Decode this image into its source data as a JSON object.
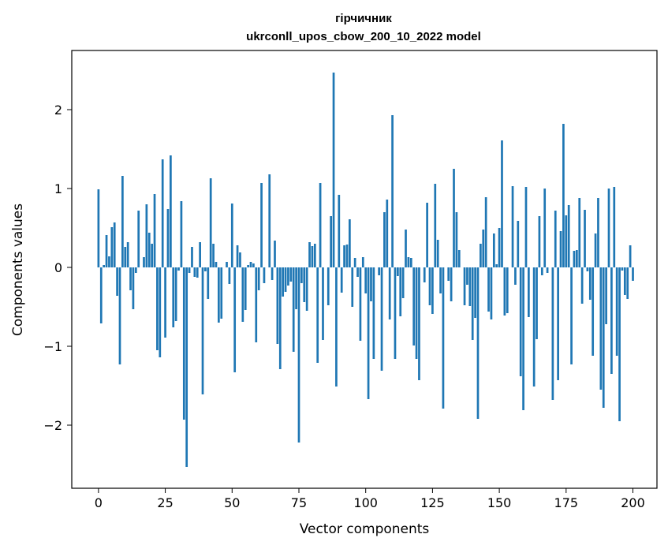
{
  "chart_data": {
    "type": "bar",
    "title": "гірчичник",
    "subtitle": "ukrconll_upos_cbow_200_10_2022 model",
    "xlabel": "Vector components",
    "ylabel": "Components values",
    "xlim": [
      -10,
      209
    ],
    "ylim": [
      -2.8,
      2.75
    ],
    "xticks": [
      0,
      25,
      50,
      75,
      100,
      125,
      150,
      175,
      200
    ],
    "yticks": [
      -2,
      -1,
      0,
      1,
      2
    ],
    "ytick_labels": [
      "−2",
      "−1",
      "0",
      "1",
      "2"
    ],
    "grid": false,
    "bar_color": "#1f77b4",
    "values": [
      0.99,
      -0.71,
      0.03,
      0.41,
      0.14,
      0.51,
      0.57,
      -0.36,
      -1.23,
      1.16,
      0.26,
      0.32,
      -0.29,
      -0.53,
      -0.07,
      0.72,
      0.0,
      0.13,
      0.8,
      0.44,
      0.3,
      0.93,
      -1.05,
      -1.14,
      1.37,
      -0.89,
      0.74,
      1.42,
      -0.76,
      -0.68,
      -0.04,
      0.84,
      -1.93,
      -2.53,
      -0.07,
      0.26,
      -0.12,
      -0.13,
      0.32,
      -1.61,
      -0.05,
      -0.4,
      1.13,
      0.3,
      0.07,
      -0.7,
      -0.65,
      0.0,
      0.07,
      -0.21,
      0.81,
      -1.33,
      0.28,
      0.19,
      -0.69,
      -0.54,
      0.03,
      0.07,
      0.05,
      -0.95,
      -0.29,
      1.07,
      -0.2,
      0.0,
      1.18,
      -0.16,
      0.34,
      -0.97,
      -1.29,
      -0.37,
      -0.31,
      -0.23,
      -0.18,
      -1.07,
      -0.53,
      -2.22,
      -0.2,
      -0.44,
      -0.55,
      0.32,
      0.27,
      0.3,
      -1.21,
      1.07,
      -0.92,
      0.0,
      -0.48,
      0.65,
      2.47,
      -1.51,
      0.92,
      -0.32,
      0.28,
      0.29,
      0.61,
      -0.5,
      0.12,
      -0.12,
      -0.93,
      0.13,
      -0.33,
      -1.67,
      -0.43,
      -1.16,
      0.0,
      -0.1,
      -1.31,
      0.7,
      0.86,
      -0.66,
      1.93,
      -1.16,
      -0.11,
      -0.62,
      -0.39,
      0.48,
      0.13,
      0.12,
      -0.99,
      -1.16,
      -1.43,
      0.0,
      -0.19,
      0.82,
      -0.48,
      -0.59,
      1.06,
      0.35,
      -0.33,
      -1.79,
      0.0,
      -0.17,
      -0.43,
      1.25,
      0.7,
      0.22,
      0.0,
      -0.48,
      -0.22,
      -0.49,
      -0.92,
      -0.64,
      -1.92,
      0.3,
      0.48,
      0.89,
      -0.56,
      -0.66,
      0.43,
      0.04,
      0.5,
      1.61,
      -0.61,
      -0.58,
      0.0,
      1.03,
      -0.22,
      0.59,
      -1.38,
      -1.81,
      1.02,
      -0.63,
      0.0,
      -1.51,
      -0.91,
      0.65,
      -0.1,
      1.0,
      -0.07,
      0.0,
      -1.68,
      0.72,
      -1.43,
      0.46,
      1.82,
      0.66,
      0.79,
      -1.23,
      0.21,
      0.22,
      0.88,
      -0.46,
      0.73,
      -0.05,
      -0.41,
      -1.12,
      0.43,
      0.88,
      -1.55,
      -1.78,
      -0.72,
      1.0,
      -1.35,
      1.02,
      -1.12,
      -1.95,
      -0.04,
      -0.35,
      -0.4,
      0.28,
      -0.17
    ]
  }
}
